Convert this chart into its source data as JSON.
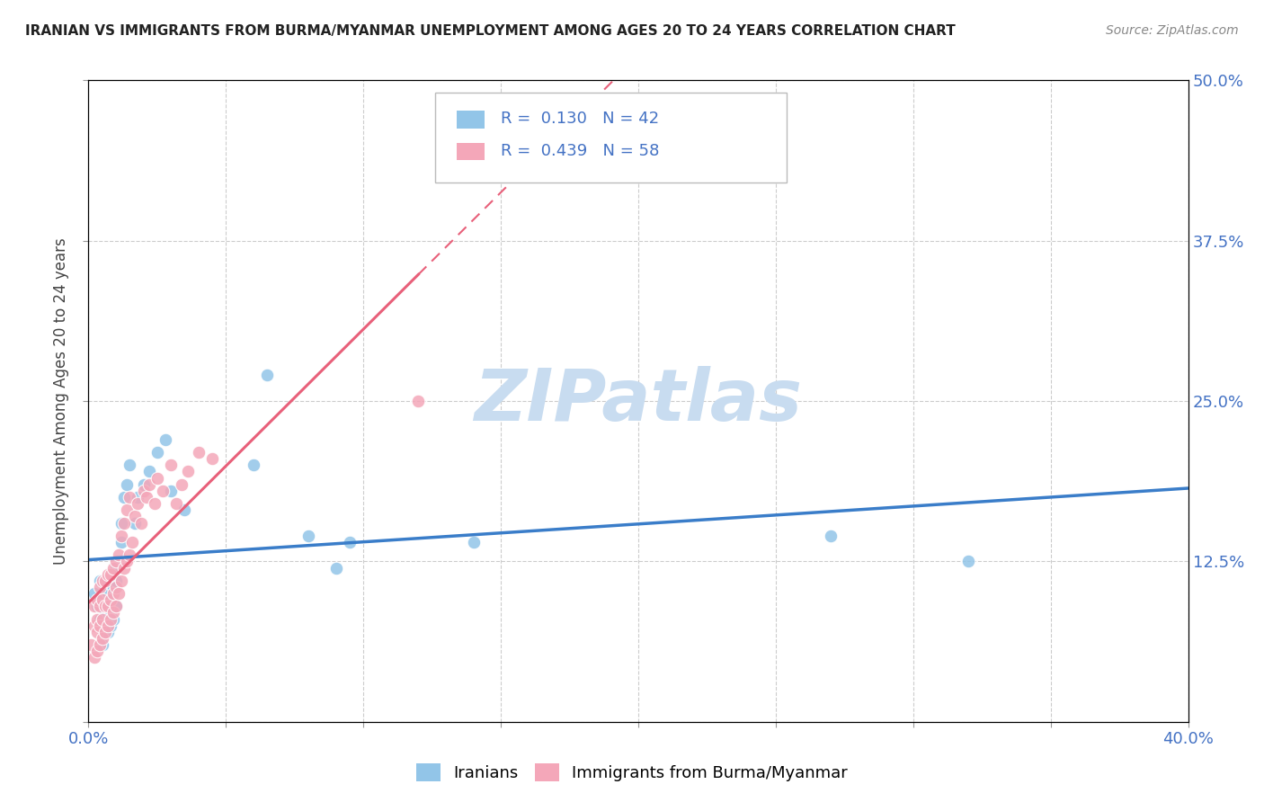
{
  "title": "IRANIAN VS IMMIGRANTS FROM BURMA/MYANMAR UNEMPLOYMENT AMONG AGES 20 TO 24 YEARS CORRELATION CHART",
  "source": "Source: ZipAtlas.com",
  "ylabel": "Unemployment Among Ages 20 to 24 years",
  "xlim": [
    0.0,
    0.4
  ],
  "ylim": [
    0.0,
    0.5
  ],
  "xticks": [
    0.0,
    0.05,
    0.1,
    0.15,
    0.2,
    0.25,
    0.3,
    0.35,
    0.4
  ],
  "yticks": [
    0.0,
    0.125,
    0.25,
    0.375,
    0.5
  ],
  "iranians_R": 0.13,
  "iranians_N": 42,
  "burma_R": 0.439,
  "burma_N": 58,
  "blue_scatter_color": "#92C5E8",
  "pink_scatter_color": "#F4A7B9",
  "blue_line_color": "#3A7DC9",
  "pink_line_color": "#E8607A",
  "background_color": "#ffffff",
  "watermark_color": "#C8DCF0",
  "iranians_x": [
    0.002,
    0.003,
    0.004,
    0.004,
    0.005,
    0.005,
    0.005,
    0.006,
    0.006,
    0.006,
    0.007,
    0.007,
    0.007,
    0.008,
    0.008,
    0.008,
    0.009,
    0.009,
    0.01,
    0.01,
    0.01,
    0.012,
    0.012,
    0.013,
    0.014,
    0.015,
    0.017,
    0.018,
    0.02,
    0.022,
    0.025,
    0.028,
    0.03,
    0.035,
    0.06,
    0.065,
    0.08,
    0.09,
    0.095,
    0.14,
    0.27,
    0.32
  ],
  "iranians_y": [
    0.1,
    0.09,
    0.08,
    0.11,
    0.06,
    0.075,
    0.095,
    0.07,
    0.085,
    0.105,
    0.07,
    0.09,
    0.1,
    0.075,
    0.085,
    0.095,
    0.08,
    0.105,
    0.12,
    0.09,
    0.11,
    0.14,
    0.155,
    0.175,
    0.185,
    0.2,
    0.155,
    0.175,
    0.185,
    0.195,
    0.21,
    0.22,
    0.18,
    0.165,
    0.2,
    0.27,
    0.145,
    0.12,
    0.14,
    0.14,
    0.145,
    0.125
  ],
  "burma_x": [
    0.001,
    0.002,
    0.002,
    0.002,
    0.003,
    0.003,
    0.003,
    0.003,
    0.004,
    0.004,
    0.004,
    0.004,
    0.005,
    0.005,
    0.005,
    0.005,
    0.006,
    0.006,
    0.006,
    0.007,
    0.007,
    0.007,
    0.008,
    0.008,
    0.008,
    0.009,
    0.009,
    0.009,
    0.01,
    0.01,
    0.01,
    0.011,
    0.011,
    0.012,
    0.012,
    0.013,
    0.013,
    0.014,
    0.014,
    0.015,
    0.015,
    0.016,
    0.017,
    0.018,
    0.019,
    0.02,
    0.021,
    0.022,
    0.024,
    0.025,
    0.027,
    0.03,
    0.032,
    0.034,
    0.036,
    0.04,
    0.045,
    0.12
  ],
  "burma_y": [
    0.06,
    0.05,
    0.075,
    0.09,
    0.055,
    0.07,
    0.08,
    0.095,
    0.06,
    0.075,
    0.09,
    0.105,
    0.065,
    0.08,
    0.095,
    0.11,
    0.07,
    0.09,
    0.11,
    0.075,
    0.09,
    0.115,
    0.08,
    0.095,
    0.115,
    0.085,
    0.1,
    0.12,
    0.09,
    0.105,
    0.125,
    0.1,
    0.13,
    0.11,
    0.145,
    0.12,
    0.155,
    0.125,
    0.165,
    0.13,
    0.175,
    0.14,
    0.16,
    0.17,
    0.155,
    0.18,
    0.175,
    0.185,
    0.17,
    0.19,
    0.18,
    0.2,
    0.17,
    0.185,
    0.195,
    0.21,
    0.205,
    0.25
  ]
}
